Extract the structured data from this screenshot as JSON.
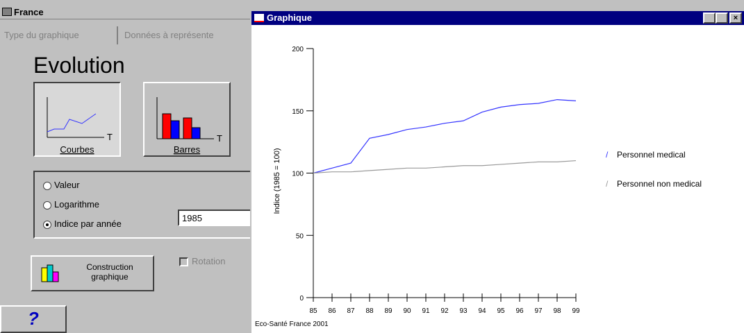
{
  "window": {
    "title": "France",
    "tabs": [
      "Type du graphique",
      "Données à représente"
    ],
    "heading": "Evolution",
    "buttons": [
      {
        "label": "Courbes",
        "axis_label": "T"
      },
      {
        "label": "Barres",
        "axis_label": "T"
      }
    ],
    "options": [
      "Valeur",
      "Logarithme",
      "Indice par année"
    ],
    "selected_option": 2,
    "year": "1985",
    "construction": [
      "Construction",
      "graphique"
    ],
    "rotation": "Rotation",
    "help": "?"
  },
  "graph_window": {
    "title": "Graphique",
    "footer": "Eco-Santé France 2001"
  },
  "chart_data": {
    "type": "line",
    "ylabel": "Indice (1985 = 100)",
    "categories": [
      "85",
      "86",
      "87",
      "88",
      "89",
      "90",
      "91",
      "92",
      "93",
      "94",
      "95",
      "96",
      "97",
      "98",
      "99"
    ],
    "ylim": [
      0,
      200
    ],
    "yticks": [
      0,
      50,
      100,
      150,
      200
    ],
    "series": [
      {
        "name": "Personnel medical",
        "color": "#3333ff",
        "values": [
          100,
          104,
          108,
          128,
          131,
          135,
          137,
          140,
          142,
          149,
          153,
          155,
          156,
          159,
          158
        ]
      },
      {
        "name": "Personnel non medical",
        "color": "#999999",
        "values": [
          100,
          101,
          101,
          102,
          103,
          104,
          104,
          105,
          106,
          106,
          107,
          108,
          109,
          109,
          110
        ]
      }
    ]
  }
}
